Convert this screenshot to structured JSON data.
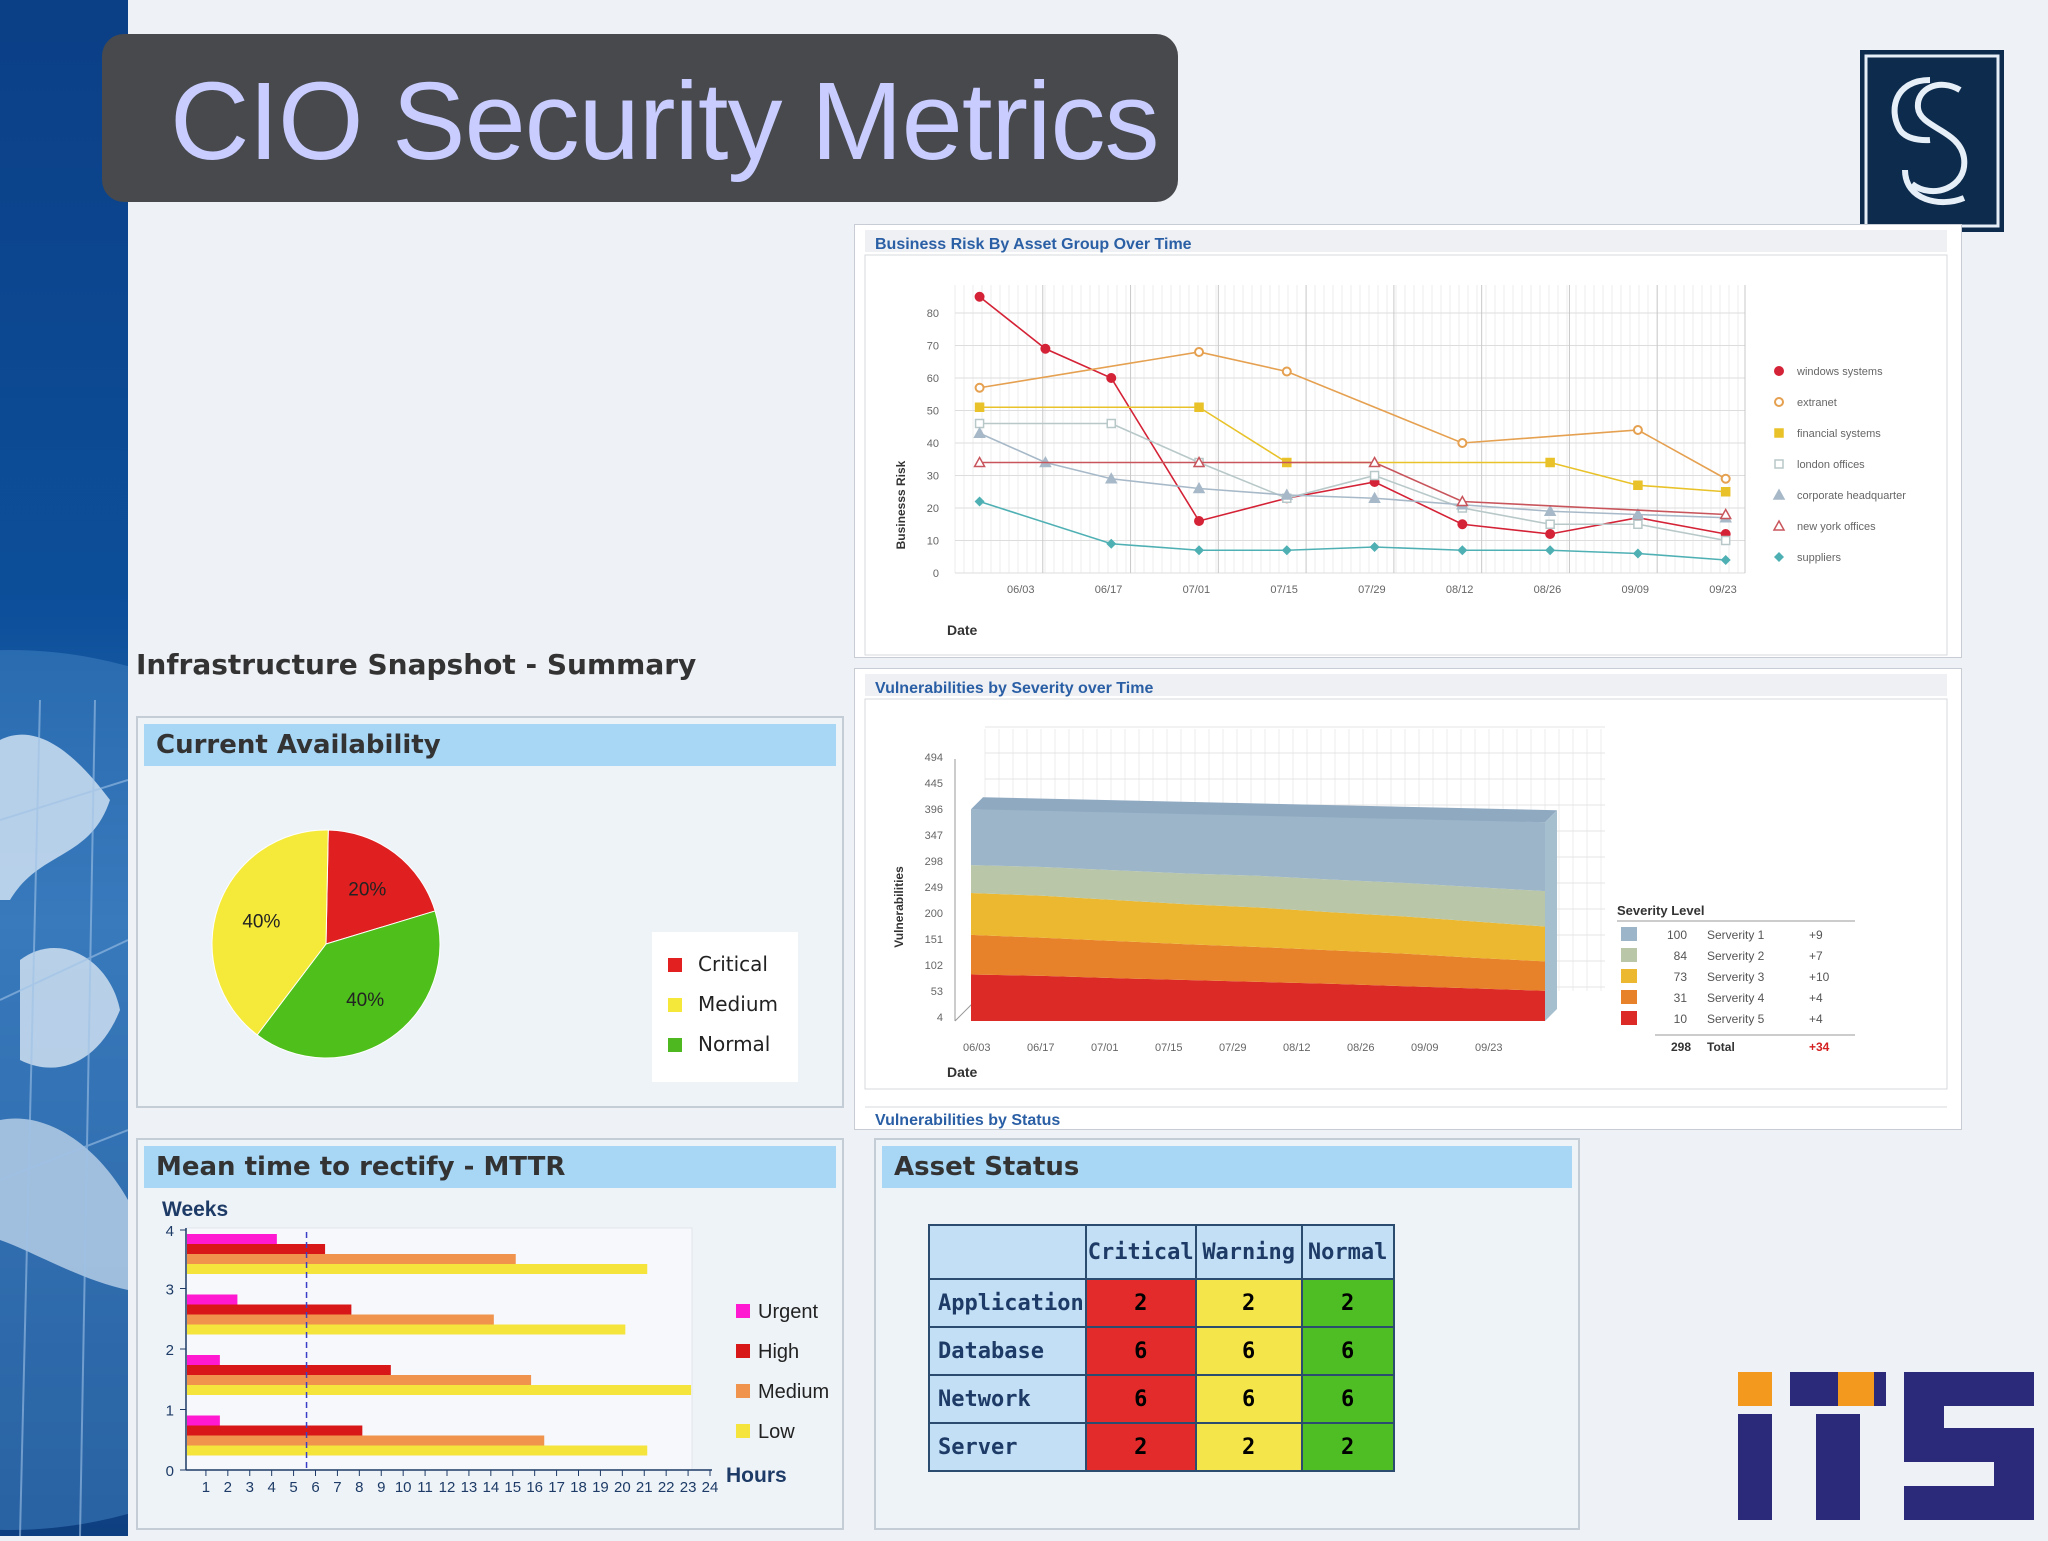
{
  "slide": {
    "title": "CIO Security Metrics",
    "section_label": "Infrastructure Snapshot - Summary"
  },
  "colors": {
    "sidebar": "#0d4f9a",
    "title_bg": "#47494d",
    "title_text": "#c8ccff",
    "widget_header": "#a8d6f5",
    "critical": "#e32020",
    "medium": "#f5e83a",
    "normal": "#4db820",
    "urgent": "#ff00cc",
    "high": "#d11616",
    "med_orange": "#f0924a",
    "low": "#f5e53a"
  },
  "business_risk": {
    "title": "Business Risk By Asset Group Over Time",
    "ylabel": "Businesss Risk",
    "xlabel": "Date",
    "legend": [
      "windows systems",
      "extranet",
      "financial systems",
      "london offices",
      "corporate headquarter",
      "new york offices",
      "suppliers"
    ]
  },
  "vulnerabilities": {
    "title": "Vulnerabilities by Severity over Time",
    "ylabel": "Vulnerabilities",
    "xlabel": "Date",
    "legend_title": "Severity Level",
    "rows": [
      {
        "count": "100",
        "label": "Serverity 1",
        "delta": "+9"
      },
      {
        "count": "84",
        "label": "Serverity 2",
        "delta": "+7"
      },
      {
        "count": "73",
        "label": "Serverity 3",
        "delta": "+10"
      },
      {
        "count": "31",
        "label": "Serverity 4",
        "delta": "+4"
      },
      {
        "count": "10",
        "label": "Serverity 5",
        "delta": "+4"
      }
    ],
    "total_count": "298",
    "total_label": "Total",
    "total_delta": "+34",
    "next_panel_title": "Vulnerabilities by Status"
  },
  "availability": {
    "header": "Current Availability",
    "legend": [
      "Critical",
      "Medium",
      "Normal"
    ]
  },
  "mttr": {
    "header": "Mean time to rectify - MTTR",
    "ylabel": "Weeks",
    "xlabel": "Hours",
    "legend": [
      "Urgent",
      "High",
      "Medium",
      "Low"
    ]
  },
  "asset_status": {
    "header": "Asset Status",
    "columns": [
      "Critical",
      "Warning",
      "Normal"
    ],
    "rows": [
      {
        "name": "Application",
        "values": [
          "2",
          "2",
          "2"
        ]
      },
      {
        "name": "Database",
        "values": [
          "6",
          "6",
          "6"
        ]
      },
      {
        "name": "Network",
        "values": [
          "6",
          "6",
          "6"
        ]
      },
      {
        "name": "Server",
        "values": [
          "2",
          "2",
          "2"
        ]
      }
    ]
  },
  "chart_data": [
    {
      "type": "line",
      "title": "Business Risk By Asset Group Over Time",
      "xlabel": "Date",
      "ylabel": "Businesss Risk",
      "x": [
        "06/03",
        "06/17",
        "07/01",
        "07/15",
        "07/29",
        "08/12",
        "08/26",
        "09/09",
        "09/23"
      ],
      "ylim": [
        0,
        80
      ],
      "yticks": [
        0,
        10,
        20,
        30,
        40,
        50,
        60,
        70,
        80
      ],
      "series": [
        {
          "name": "windows systems",
          "points": [
            [
              0,
              85
            ],
            [
              0.75,
              69
            ],
            [
              1.5,
              60
            ],
            [
              2.5,
              16
            ],
            [
              3.5,
              23
            ],
            [
              4.5,
              28
            ],
            [
              5.5,
              15
            ],
            [
              6.5,
              12
            ],
            [
              7.5,
              17
            ],
            [
              8.5,
              12
            ]
          ]
        },
        {
          "name": "extranet",
          "points": [
            [
              0,
              57
            ],
            [
              2.5,
              68
            ],
            [
              3.5,
              62
            ],
            [
              5.5,
              40
            ],
            [
              7.5,
              44
            ],
            [
              8.5,
              29
            ]
          ]
        },
        {
          "name": "financial systems",
          "points": [
            [
              0,
              51
            ],
            [
              2.5,
              51
            ],
            [
              3.5,
              34
            ],
            [
              6.5,
              34
            ],
            [
              7.5,
              27
            ],
            [
              8.5,
              25
            ]
          ]
        },
        {
          "name": "london offices",
          "points": [
            [
              0,
              46
            ],
            [
              1.5,
              46
            ],
            [
              2.5,
              34
            ],
            [
              3.5,
              23
            ],
            [
              4.5,
              30
            ],
            [
              5.5,
              20
            ],
            [
              6.5,
              15
            ],
            [
              7.5,
              15
            ],
            [
              8.5,
              10
            ]
          ]
        },
        {
          "name": "corporate headquarter",
          "points": [
            [
              0,
              43
            ],
            [
              0.75,
              34
            ],
            [
              1.5,
              29
            ],
            [
              2.5,
              26
            ],
            [
              3.5,
              24
            ],
            [
              4.5,
              23
            ],
            [
              5.5,
              21
            ],
            [
              6.5,
              19
            ],
            [
              7.5,
              18
            ],
            [
              8.5,
              17
            ]
          ]
        },
        {
          "name": "new york offices",
          "points": [
            [
              0,
              34
            ],
            [
              2.5,
              34
            ],
            [
              4.5,
              34
            ],
            [
              5.5,
              22
            ],
            [
              8.5,
              18
            ]
          ]
        },
        {
          "name": "suppliers",
          "points": [
            [
              0,
              22
            ],
            [
              1.5,
              9
            ],
            [
              2.5,
              7
            ],
            [
              3.5,
              7
            ],
            [
              4.5,
              8
            ],
            [
              5.5,
              7
            ],
            [
              6.5,
              7
            ],
            [
              7.5,
              6
            ],
            [
              8.5,
              4
            ]
          ]
        }
      ]
    },
    {
      "type": "area",
      "title": "Vulnerabilities by Severity over Time",
      "xlabel": "Date",
      "ylabel": "Vulnerabilities",
      "x": [
        "06/03",
        "06/17",
        "07/01",
        "07/15",
        "07/29",
        "08/12",
        "08/26",
        "09/09",
        "09/23"
      ],
      "yticks": [
        "4",
        "53",
        "102",
        "151",
        "200",
        "249",
        "298",
        "347",
        "396",
        "445",
        "494"
      ],
      "series": [
        {
          "name": "Serverity 5",
          "values": [
            100,
            97,
            92,
            88,
            84,
            80,
            75,
            70,
            65
          ]
        },
        {
          "name": "Serverity 4",
          "values": [
            85,
            82,
            80,
            77,
            75,
            72,
            70,
            66,
            63
          ]
        },
        {
          "name": "Serverity 3",
          "values": [
            90,
            90,
            88,
            86,
            85,
            82,
            80,
            78,
            75
          ]
        },
        {
          "name": "Serverity 2",
          "values": [
            60,
            62,
            64,
            66,
            68,
            70,
            72,
            74,
            76
          ]
        },
        {
          "name": "Serverity 1",
          "values": [
            120,
            124,
            128,
            132,
            136,
            140,
            142,
            145,
            148
          ]
        }
      ]
    },
    {
      "type": "pie",
      "title": "Current Availability",
      "labels": [
        "Critical",
        "Medium",
        "Normal"
      ],
      "values": [
        20,
        40,
        40
      ],
      "data_labels": [
        "20%",
        "40%",
        "40%"
      ]
    },
    {
      "type": "bar",
      "orientation": "horizontal",
      "title": "Mean time to rectify - MTTR",
      "xlabel": "Hours",
      "ylabel": "Weeks",
      "xlim": [
        0,
        24
      ],
      "xticks": [
        "1",
        "2",
        "3",
        "4",
        "5",
        "6",
        "7",
        "8",
        "9",
        "10",
        "11",
        "12",
        "13",
        "14",
        "15",
        "16",
        "17",
        "18",
        "19",
        "20",
        "21",
        "22",
        "23",
        "24"
      ],
      "yticks": [
        "0",
        "1",
        "2",
        "3",
        "4"
      ],
      "categories": [
        "week 1",
        "week 2",
        "week 3",
        "week 4"
      ],
      "series": [
        {
          "name": "Urgent",
          "values": [
            1.5,
            1.5,
            2.3,
            4.1
          ]
        },
        {
          "name": "High",
          "values": [
            8.0,
            9.3,
            7.5,
            6.3
          ]
        },
        {
          "name": "Medium",
          "values": [
            16.3,
            15.7,
            14.0,
            15.0
          ]
        },
        {
          "name": "Low",
          "values": [
            21.0,
            23.0,
            20.0,
            21.0
          ]
        }
      ],
      "reference_x": 5.5
    }
  ]
}
